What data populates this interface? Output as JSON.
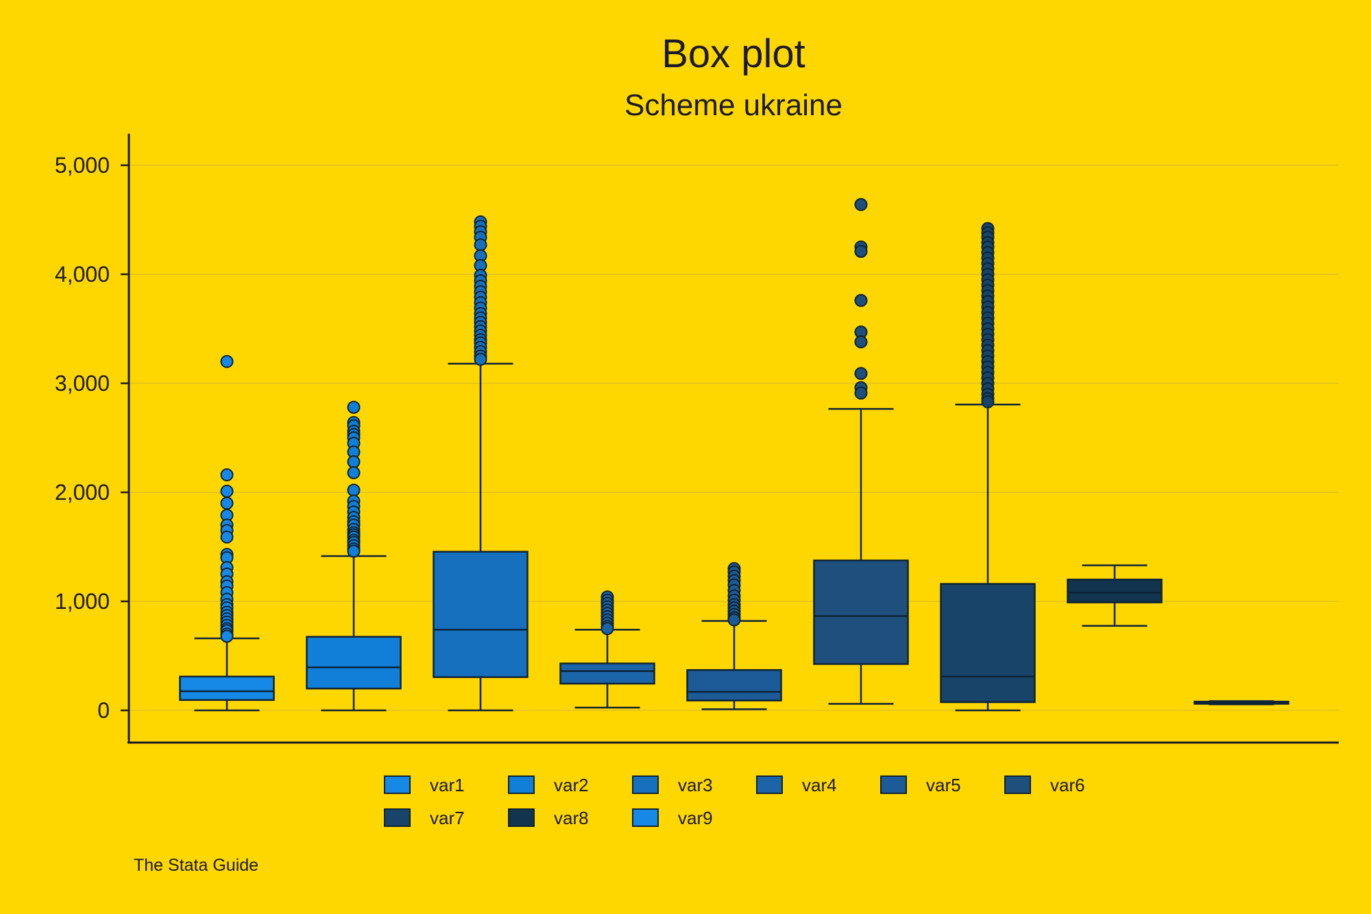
{
  "colors": {
    "background": "#FFD700",
    "axis": "#1a1a2a",
    "grid": "#D9BC2A",
    "outline": "#0d2338"
  },
  "chart_data": {
    "type": "box",
    "title": "Box plot",
    "subtitle": "Scheme ukraine",
    "note": "The Stata Guide",
    "ylim": [
      0,
      5000
    ],
    "yticks": [
      0,
      1000,
      2000,
      3000,
      4000,
      5000
    ],
    "ytick_labels": [
      "0",
      "1,000",
      "2,000",
      "3,000",
      "4,000",
      "5,000"
    ],
    "grid": true,
    "legend_position": "bottom",
    "series": [
      {
        "name": "var1",
        "color": "#1688E6",
        "min": 0,
        "q1": 95,
        "median": 175,
        "q3": 310,
        "max": 660,
        "outliers": [
          3200,
          2160,
          2010,
          1900,
          1790,
          1700,
          1650,
          1590,
          1430,
          1400,
          1310,
          1250,
          1180,
          1140,
          1080,
          1020,
          970,
          940,
          900,
          870,
          840,
          810,
          780,
          750,
          730,
          700,
          680
        ]
      },
      {
        "name": "var2",
        "color": "#117ED7",
        "min": 0,
        "q1": 200,
        "median": 395,
        "q3": 675,
        "max": 1415,
        "outliers": [
          2780,
          2640,
          2610,
          2560,
          2530,
          2500,
          2450,
          2370,
          2280,
          2180,
          2020,
          1920,
          1870,
          1820,
          1770,
          1730,
          1700,
          1660,
          1630,
          1610,
          1590,
          1560,
          1540,
          1510,
          1480,
          1460
        ]
      },
      {
        "name": "var3",
        "color": "#1670BE",
        "min": 0,
        "q1": 305,
        "median": 740,
        "q3": 1455,
        "max": 3180,
        "outliers": [
          4480,
          4440,
          4390,
          4340,
          4270,
          4170,
          4080,
          3990,
          3940,
          3890,
          3840,
          3790,
          3740,
          3690,
          3640,
          3600,
          3560,
          3520,
          3480,
          3440,
          3400,
          3370,
          3330,
          3290,
          3250,
          3220
        ]
      },
      {
        "name": "var4",
        "color": "#1C64A8",
        "min": 25,
        "q1": 245,
        "median": 360,
        "q3": 430,
        "max": 740,
        "outliers": [
          1040,
          1010,
          980,
          950,
          920,
          890,
          860,
          830,
          800,
          770,
          750
        ]
      },
      {
        "name": "var5",
        "color": "#1D5A98",
        "min": 10,
        "q1": 90,
        "median": 170,
        "q3": 370,
        "max": 820,
        "outliers": [
          1300,
          1270,
          1230,
          1190,
          1150,
          1100,
          1050,
          1010,
          970,
          940,
          910,
          880,
          850,
          830
        ]
      },
      {
        "name": "var6",
        "color": "#1E4F7D",
        "min": 60,
        "q1": 425,
        "median": 865,
        "q3": 1375,
        "max": 2765,
        "outliers": [
          4640,
          4250,
          4210,
          3760,
          3470,
          3380,
          3090,
          2960,
          2910
        ]
      },
      {
        "name": "var7",
        "color": "#174468",
        "min": 0,
        "q1": 75,
        "median": 310,
        "q3": 1160,
        "max": 2805,
        "outliers": [
          4420,
          4380,
          4340,
          4290,
          4250,
          4200,
          4150,
          4100,
          4050,
          4000,
          3950,
          3900,
          3850,
          3800,
          3750,
          3700,
          3650,
          3600,
          3550,
          3500,
          3450,
          3400,
          3350,
          3300,
          3250,
          3200,
          3150,
          3100,
          3050,
          3000,
          2950,
          2900,
          2860,
          2830
        ]
      },
      {
        "name": "var8",
        "color": "#12344F",
        "min": 775,
        "q1": 990,
        "median": 1080,
        "q3": 1200,
        "max": 1330,
        "outliers": []
      },
      {
        "name": "var9",
        "color": "#1688E6",
        "min": 55,
        "q1": 60,
        "median": 68,
        "q3": 80,
        "max": 85,
        "outliers": []
      }
    ]
  }
}
